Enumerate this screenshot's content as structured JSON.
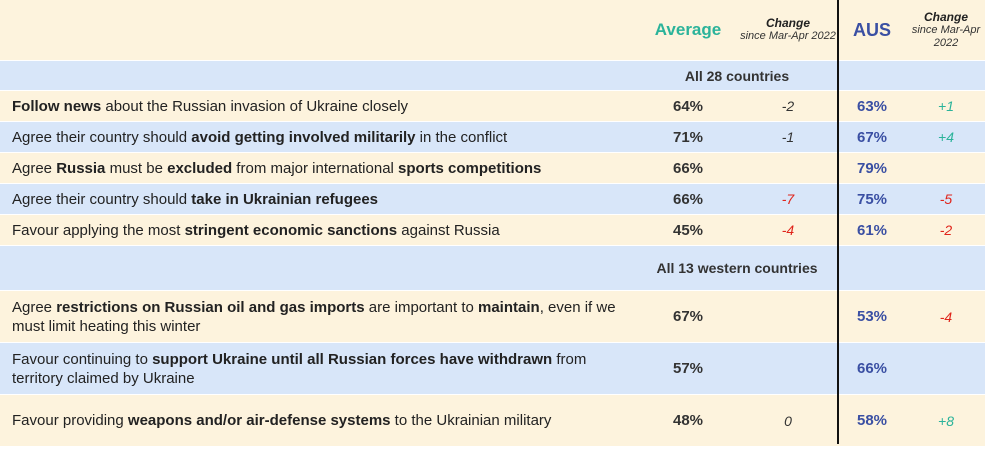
{
  "header": {
    "average": "Average",
    "change_title": "Change",
    "change_sub": "since Mar-Apr 2022",
    "aus": "AUS",
    "aus_change_title": "Change",
    "aus_change_sub": "since Mar-Apr 2022"
  },
  "sections": [
    {
      "title": "All 28 countries",
      "rows": [
        {
          "label_pre": "",
          "label_bold1": "Follow news",
          "label_mid": " about the Russian invasion of Ukraine closely",
          "label_bold2": "",
          "label_post": "",
          "average": "64%",
          "change": "-2",
          "change_type": "zero",
          "aus": "63%",
          "aus_change": "+1",
          "aus_change_type": "pos",
          "bg": "cream"
        },
        {
          "label_pre": "Agree their country should ",
          "label_bold1": "avoid getting involved militarily",
          "label_mid": " in the conflict",
          "label_bold2": "",
          "label_post": "",
          "average": "71%",
          "change": "-1",
          "change_type": "zero",
          "aus": "67%",
          "aus_change": "+4",
          "aus_change_type": "pos",
          "bg": "blue"
        },
        {
          "label_pre": "Agree ",
          "label_bold1": "Russia",
          "label_mid": " must be ",
          "label_bold2": "excluded",
          "label_post": " from major international ",
          "label_bold3": "sports competitions",
          "average": "66%",
          "change": "",
          "change_type": "zero",
          "aus": "79%",
          "aus_change": "",
          "aus_change_type": "pos",
          "bg": "cream"
        },
        {
          "label_pre": "Agree their country should ",
          "label_bold1": "take in Ukrainian refugees",
          "label_mid": "",
          "label_bold2": "",
          "label_post": "",
          "average": "66%",
          "change": "-7",
          "change_type": "neg",
          "aus": "75%",
          "aus_change": "-5",
          "aus_change_type": "neg",
          "bg": "blue"
        },
        {
          "label_pre": "Favour applying the most ",
          "label_bold1": "stringent economic sanctions",
          "label_mid": " against Russia",
          "label_bold2": "",
          "label_post": "",
          "average": "45%",
          "change": "-4",
          "change_type": "neg",
          "aus": "61%",
          "aus_change": "-2",
          "aus_change_type": "neg",
          "bg": "cream"
        }
      ]
    },
    {
      "title": "All 13 western countries",
      "rows": [
        {
          "label_pre": "Agree ",
          "label_bold1": "restrictions on Russian oil and gas imports",
          "label_mid": " are important to ",
          "label_bold2": "maintain",
          "label_post": ", even if we must limit heating this winter",
          "average": "67%",
          "change": "",
          "change_type": "zero",
          "aus": "53%",
          "aus_change": "-4",
          "aus_change_type": "neg",
          "bg": "cream"
        },
        {
          "label_pre": "Favour continuing to ",
          "label_bold1": "support Ukraine until all Russian forces have withdrawn",
          "label_mid": " from territory claimed by Ukraine",
          "label_bold2": "",
          "label_post": "",
          "average": "57%",
          "change": "",
          "change_type": "zero",
          "aus": "66%",
          "aus_change": "",
          "aus_change_type": "pos",
          "bg": "blue"
        },
        {
          "label_pre": "Favour providing ",
          "label_bold1": "weapons and/or air-defense systems",
          "label_mid": " to the Ukrainian military",
          "label_bold2": "",
          "label_post": "",
          "average": "48%",
          "change": "0",
          "change_type": "zero",
          "aus": "58%",
          "aus_change": "+8",
          "aus_change_type": "pos",
          "bg": "cream"
        }
      ]
    }
  ]
}
